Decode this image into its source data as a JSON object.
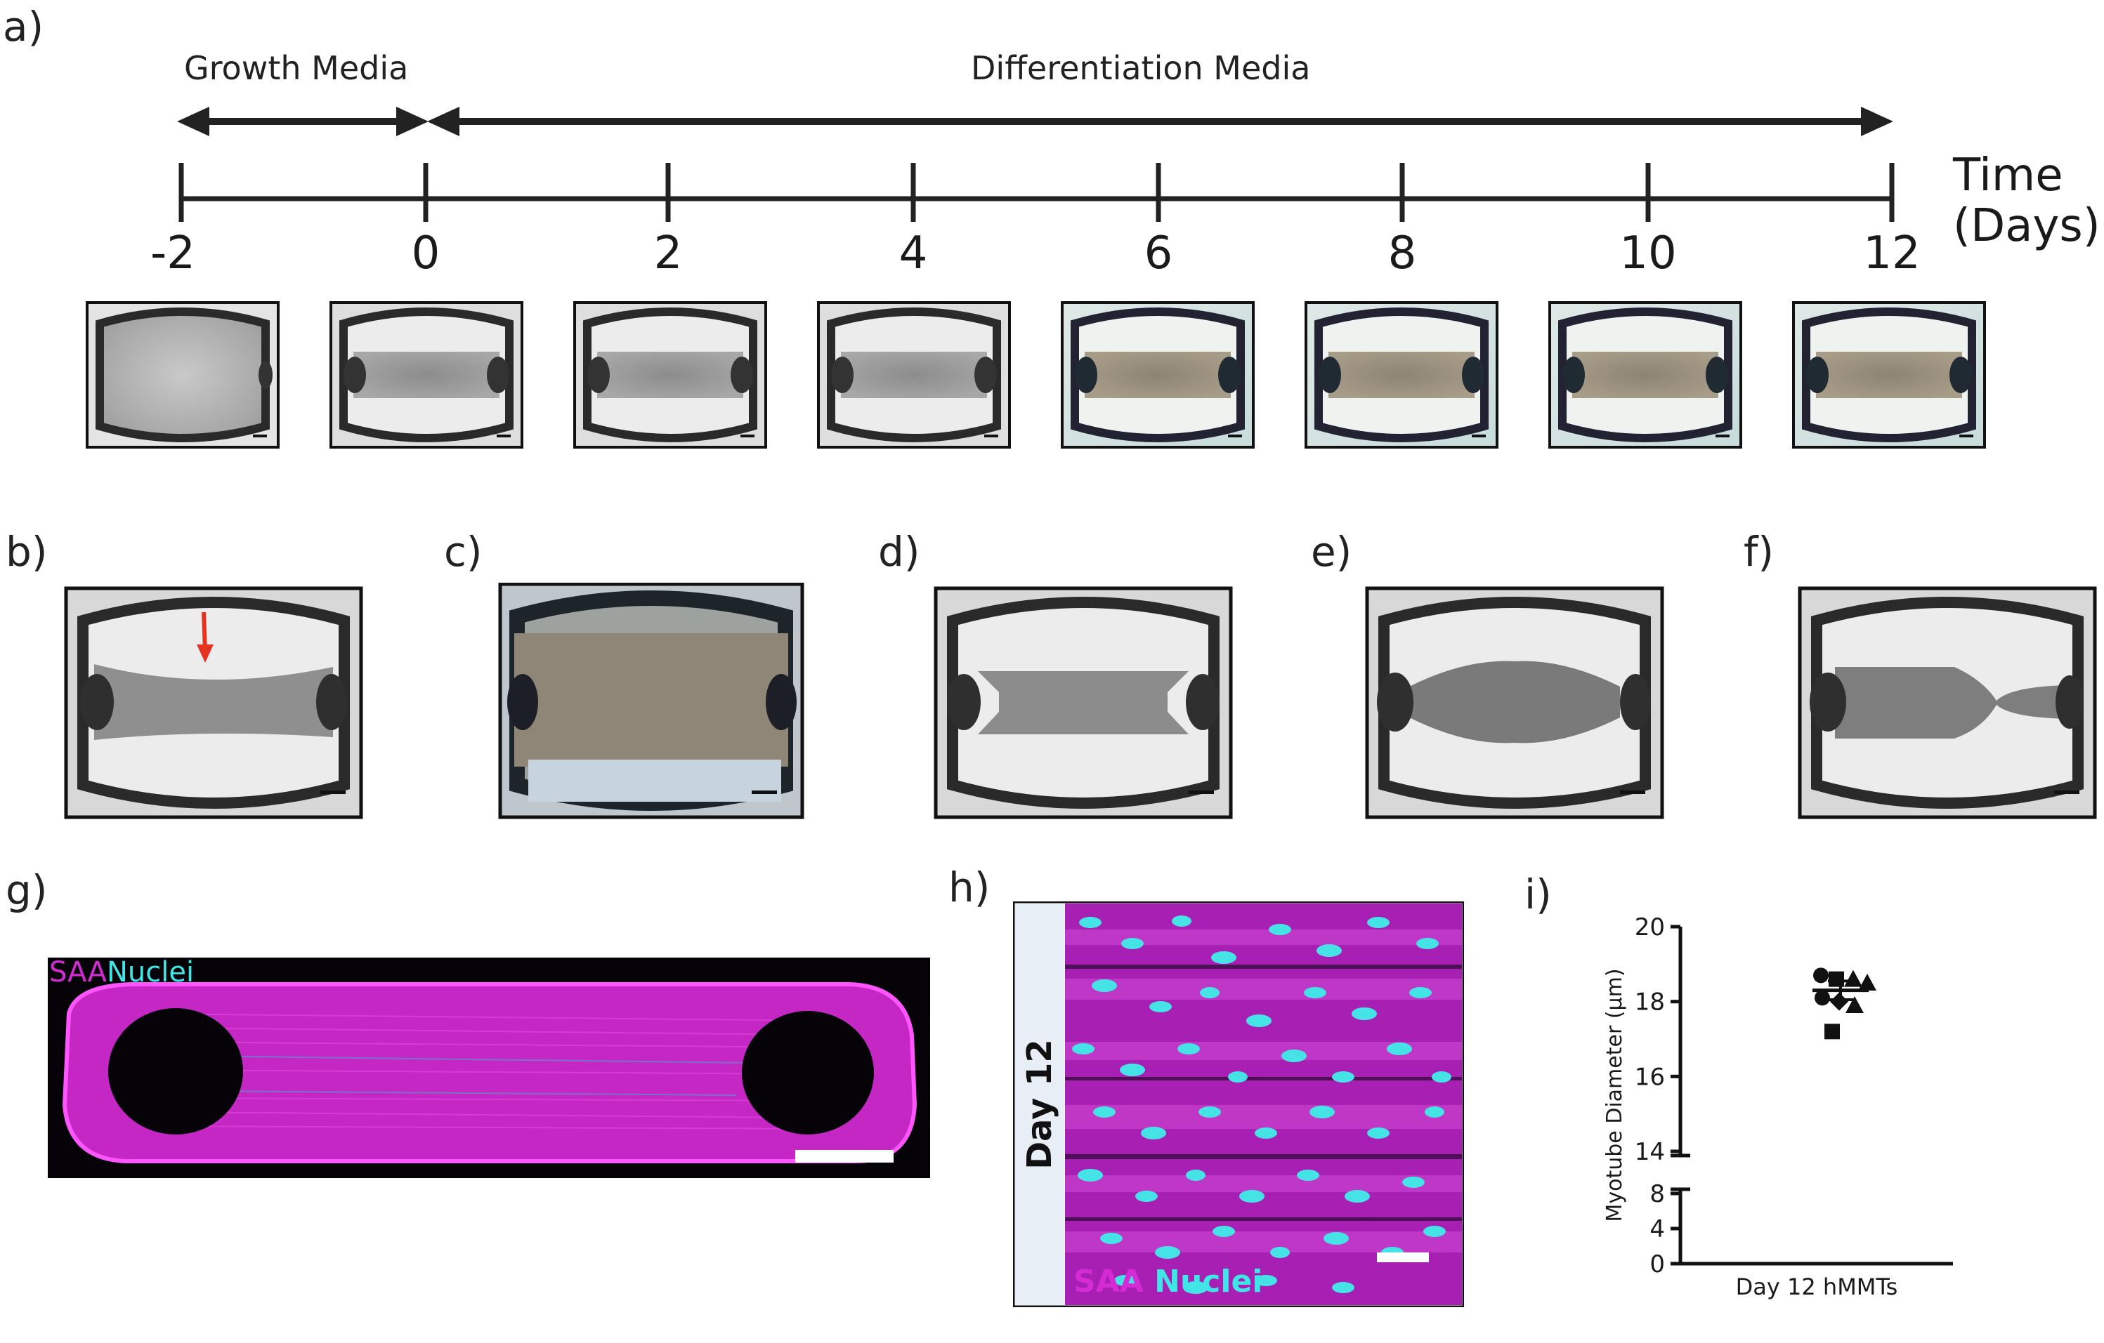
{
  "panels": {
    "a": "a)",
    "b": "b)",
    "c": "c)",
    "d": "d)",
    "e": "e)",
    "f": "f)",
    "g": "g)",
    "h": "h)",
    "i": "i)"
  },
  "timeline": {
    "growth_label": "Growth Media",
    "diff_label": "Differentiation Media",
    "ticks": [
      "-2",
      "0",
      "2",
      "4",
      "6",
      "8",
      "10",
      "12"
    ],
    "time_line1": "Time",
    "time_line2": "(Days)"
  },
  "stains": {
    "g_saa": "SAA",
    "g_nuclei": "Nuclei",
    "h_saa": "SAA",
    "h_nuclei": "Nuclei",
    "h_day": "Day 12"
  },
  "chart_data": {
    "type": "scatter",
    "ylabel": "Myotube Diameter (μm)",
    "xlabel": "Day 12 hMMTs",
    "ylim_upper": [
      14,
      20
    ],
    "ylim_lower": [
      0,
      8
    ],
    "yticks_upper": [
      14,
      16,
      18,
      20
    ],
    "yticks_lower": [
      0,
      4,
      8
    ],
    "mean": 18.3,
    "sem": 0.25,
    "points": [
      {
        "shape": "circle",
        "y": 18.7
      },
      {
        "shape": "square",
        "y": 18.6
      },
      {
        "shape": "triangle",
        "y": 18.6
      },
      {
        "shape": "triangle",
        "y": 18.5
      },
      {
        "shape": "circle",
        "y": 18.1
      },
      {
        "shape": "diamond",
        "y": 18.0
      },
      {
        "shape": "triangle",
        "y": 17.9
      },
      {
        "shape": "square",
        "y": 17.2
      }
    ]
  }
}
